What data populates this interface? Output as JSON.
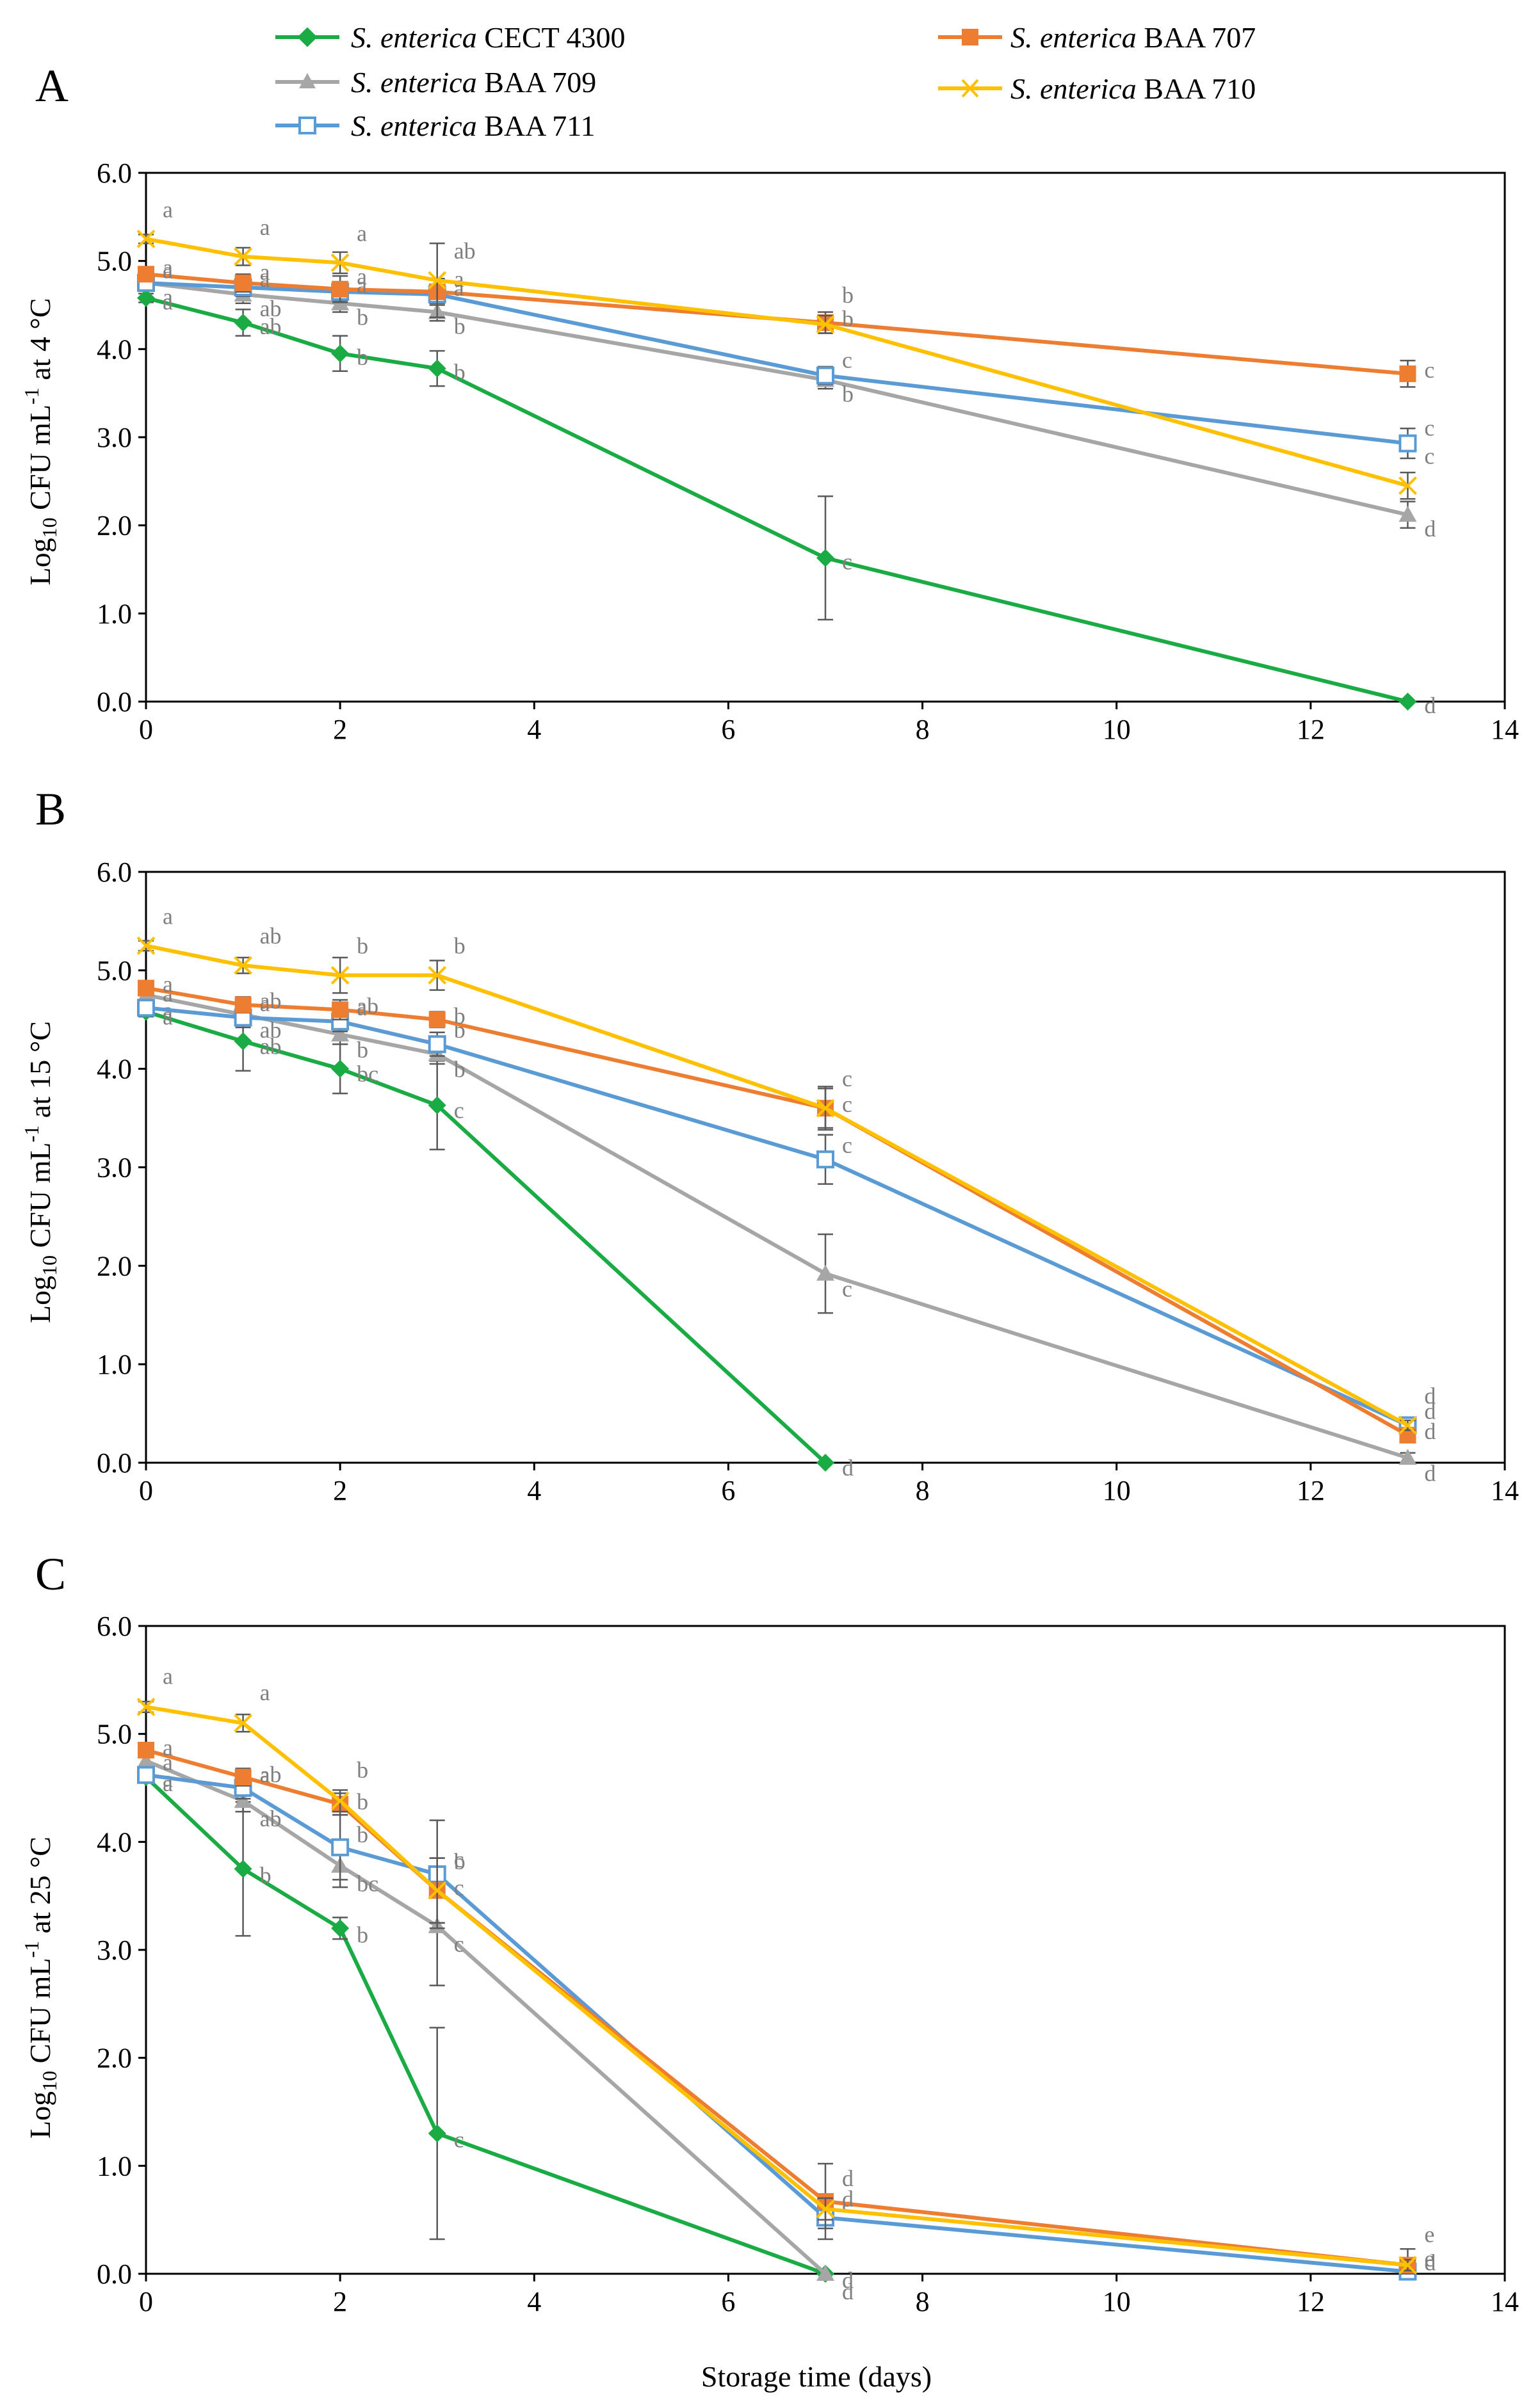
{
  "chart_data": {
    "type": "line",
    "xlabel": "Storage time (days)",
    "x_range": [
      0,
      14
    ],
    "x_ticks": [
      "0",
      "2",
      "4",
      "6",
      "8",
      "10",
      "12",
      "14"
    ],
    "y_range": [
      0.0,
      6.0
    ],
    "y_ticks": [
      "0.0",
      "1.0",
      "2.0",
      "3.0",
      "4.0",
      "5.0",
      "6.0"
    ],
    "legend": [
      {
        "key": "cect4300",
        "italic": "S. enterica",
        "name": "CECT 4300",
        "color": "#1aab45",
        "marker": "diamond"
      },
      {
        "key": "baa709",
        "italic": "S. enterica",
        "name": "BAA 709",
        "color": "#a6a6a6",
        "marker": "triangle"
      },
      {
        "key": "baa711",
        "italic": "S. enterica",
        "name": "BAA 711",
        "color": "#5b9bd5",
        "marker": "square-open"
      },
      {
        "key": "baa707",
        "italic": "S. enterica",
        "name": "BAA 707",
        "color": "#ed7d31",
        "marker": "square"
      },
      {
        "key": "baa710",
        "italic": "S. enterica",
        "name": "BAA 710",
        "color": "#ffc000",
        "marker": "x"
      }
    ],
    "panels": [
      {
        "letter": "A",
        "ylabel_pre": "Log",
        "ylabel_sub": "10",
        "ylabel_mid": " CFU mL",
        "ylabel_sup": "-1",
        "ylabel_post": " at 4 °C",
        "series": [
          {
            "key": "cect4300",
            "points": [
              [
                0,
                4.58,
                0.05
              ],
              [
                1,
                4.3,
                0.15
              ],
              [
                2,
                3.95,
                0.2
              ],
              [
                3,
                3.78,
                0.2
              ],
              [
                7,
                1.63,
                0.7
              ],
              [
                13,
                0.0,
                0
              ]
            ],
            "labels": [
              "a",
              "ab",
              "b",
              "b",
              "c",
              "d"
            ]
          },
          {
            "key": "baa709",
            "points": [
              [
                0,
                4.75,
                0.05
              ],
              [
                1,
                4.62,
                0.1
              ],
              [
                2,
                4.52,
                0.1
              ],
              [
                3,
                4.42,
                0.1
              ],
              [
                7,
                3.65,
                0.1
              ],
              [
                13,
                2.12,
                0.15
              ]
            ],
            "labels": [
              "a",
              "ab",
              "b",
              "b",
              "b",
              "d"
            ]
          },
          {
            "key": "baa711",
            "points": [
              [
                0,
                4.75,
                0.05
              ],
              [
                1,
                4.7,
                0.1
              ],
              [
                2,
                4.65,
                0.1
              ],
              [
                3,
                4.62,
                0.1
              ],
              [
                7,
                3.7,
                0.1
              ],
              [
                13,
                2.93,
                0.17
              ]
            ],
            "labels": [
              "a",
              "a",
              "a",
              "a",
              "c",
              "c"
            ]
          },
          {
            "key": "baa707",
            "points": [
              [
                0,
                4.85,
                0.05
              ],
              [
                1,
                4.75,
                0.1
              ],
              [
                2,
                4.68,
                0.15
              ],
              [
                3,
                4.65,
                0.15
              ],
              [
                7,
                4.3,
                0.12
              ],
              [
                13,
                3.72,
                0.15
              ]
            ],
            "labels": [
              "a",
              "a",
              "a",
              "a",
              "b",
              "c"
            ]
          },
          {
            "key": "baa710",
            "points": [
              [
                0,
                5.25,
                0.05
              ],
              [
                1,
                5.05,
                0.1
              ],
              [
                2,
                4.98,
                0.12
              ],
              [
                3,
                4.78,
                0.42
              ],
              [
                7,
                4.28,
                0.1
              ],
              [
                13,
                2.45,
                0.15
              ]
            ],
            "labels": [
              "a",
              "a",
              "a",
              "ab",
              "b",
              "c"
            ]
          }
        ]
      },
      {
        "letter": "B",
        "ylabel_pre": "Log",
        "ylabel_sub": "10",
        "ylabel_mid": " CFU mL",
        "ylabel_sup": "-1",
        "ylabel_post": " at 15 °C",
        "series": [
          {
            "key": "cect4300",
            "points": [
              [
                0,
                4.58,
                0.05
              ],
              [
                1,
                4.28,
                0.3
              ],
              [
                2,
                4.0,
                0.25
              ],
              [
                3,
                3.63,
                0.45
              ],
              [
                7,
                0.0,
                0
              ]
            ],
            "labels": [
              "a",
              "ab",
              "bc",
              "c",
              "d"
            ]
          },
          {
            "key": "baa709",
            "points": [
              [
                0,
                4.75,
                0.05
              ],
              [
                1,
                4.55,
                0.1
              ],
              [
                2,
                4.35,
                0.1
              ],
              [
                3,
                4.15,
                0.1
              ],
              [
                7,
                1.92,
                0.4
              ],
              [
                13,
                0.05,
                0.05
              ]
            ],
            "labels": [
              "a",
              "ab",
              "b",
              "b",
              "c",
              "d"
            ]
          },
          {
            "key": "baa711",
            "points": [
              [
                0,
                4.62,
                0.05
              ],
              [
                1,
                4.52,
                0.1
              ],
              [
                2,
                4.48,
                0.1
              ],
              [
                3,
                4.25,
                0.12
              ],
              [
                7,
                3.08,
                0.25
              ],
              [
                13,
                0.38,
                0.05
              ]
            ],
            "labels": [
              "a",
              "a",
              "a",
              "b",
              "c",
              "d"
            ]
          },
          {
            "key": "baa707",
            "points": [
              [
                0,
                4.82,
                0.05
              ],
              [
                1,
                4.65,
                0.08
              ],
              [
                2,
                4.6,
                0.1
              ],
              [
                3,
                4.5,
                0.08
              ],
              [
                7,
                3.6,
                0.22
              ],
              [
                13,
                0.28,
                0.05
              ]
            ],
            "labels": [
              "a",
              "ab",
              "ab",
              "b",
              "c",
              "d"
            ]
          },
          {
            "key": "baa710",
            "points": [
              [
                0,
                5.25,
                0.05
              ],
              [
                1,
                5.05,
                0.08
              ],
              [
                2,
                4.95,
                0.18
              ],
              [
                3,
                4.95,
                0.15
              ],
              [
                7,
                3.6,
                0.2
              ],
              [
                13,
                0.38,
                0.05
              ]
            ],
            "labels": [
              "a",
              "ab",
              "b",
              "b",
              "c",
              "d"
            ]
          }
        ]
      },
      {
        "letter": "C",
        "ylabel_pre": "Log",
        "ylabel_sub": "10",
        "ylabel_mid": " CFU mL",
        "ylabel_sup": "-1",
        "ylabel_post": " at 25 °C",
        "series": [
          {
            "key": "cect4300",
            "points": [
              [
                0,
                4.6,
                0.05
              ],
              [
                1,
                3.75,
                0.62
              ],
              [
                2,
                3.2,
                0.1
              ],
              [
                3,
                1.3,
                0.98
              ],
              [
                7,
                0.0,
                0
              ]
            ],
            "labels": [
              "a",
              "b",
              "b",
              "c",
              "d"
            ]
          },
          {
            "key": "baa709",
            "points": [
              [
                0,
                4.75,
                0.05
              ],
              [
                1,
                4.38,
                0.1
              ],
              [
                2,
                3.78,
                0.2
              ],
              [
                3,
                3.22,
                0.55
              ],
              [
                7,
                0.0,
                0
              ]
            ],
            "labels": [
              "a",
              "ab",
              "bc",
              "c",
              "d"
            ]
          },
          {
            "key": "baa711",
            "points": [
              [
                0,
                4.62,
                0.05
              ],
              [
                1,
                4.5,
                0.1
              ],
              [
                2,
                3.95,
                0.3
              ],
              [
                3,
                3.7,
                0.5
              ],
              [
                7,
                0.52,
                0.1
              ],
              [
                13,
                0.02,
                0.03
              ]
            ],
            "labels": [
              "a",
              "a",
              "b",
              "b",
              "c",
              "e"
            ]
          },
          {
            "key": "baa707",
            "points": [
              [
                0,
                4.85,
                0.05
              ],
              [
                1,
                4.6,
                0.08
              ],
              [
                2,
                4.35,
                0.1
              ],
              [
                3,
                3.55,
                0.3
              ],
              [
                7,
                0.67,
                0.35
              ],
              [
                13,
                0.08,
                0.15
              ]
            ],
            "labels": [
              "a",
              "ab",
              "b",
              "c",
              "d",
              "d"
            ]
          },
          {
            "key": "baa710",
            "points": [
              [
                0,
                5.25,
                0.05
              ],
              [
                1,
                5.1,
                0.08
              ],
              [
                2,
                4.38,
                0.1
              ],
              [
                3,
                3.55,
                0.3
              ],
              [
                7,
                0.6,
                0.1
              ],
              [
                13,
                0.08,
                0.05
              ]
            ],
            "labels": [
              "a",
              "a",
              "b",
              "c",
              "d",
              "e"
            ]
          }
        ]
      }
    ]
  }
}
